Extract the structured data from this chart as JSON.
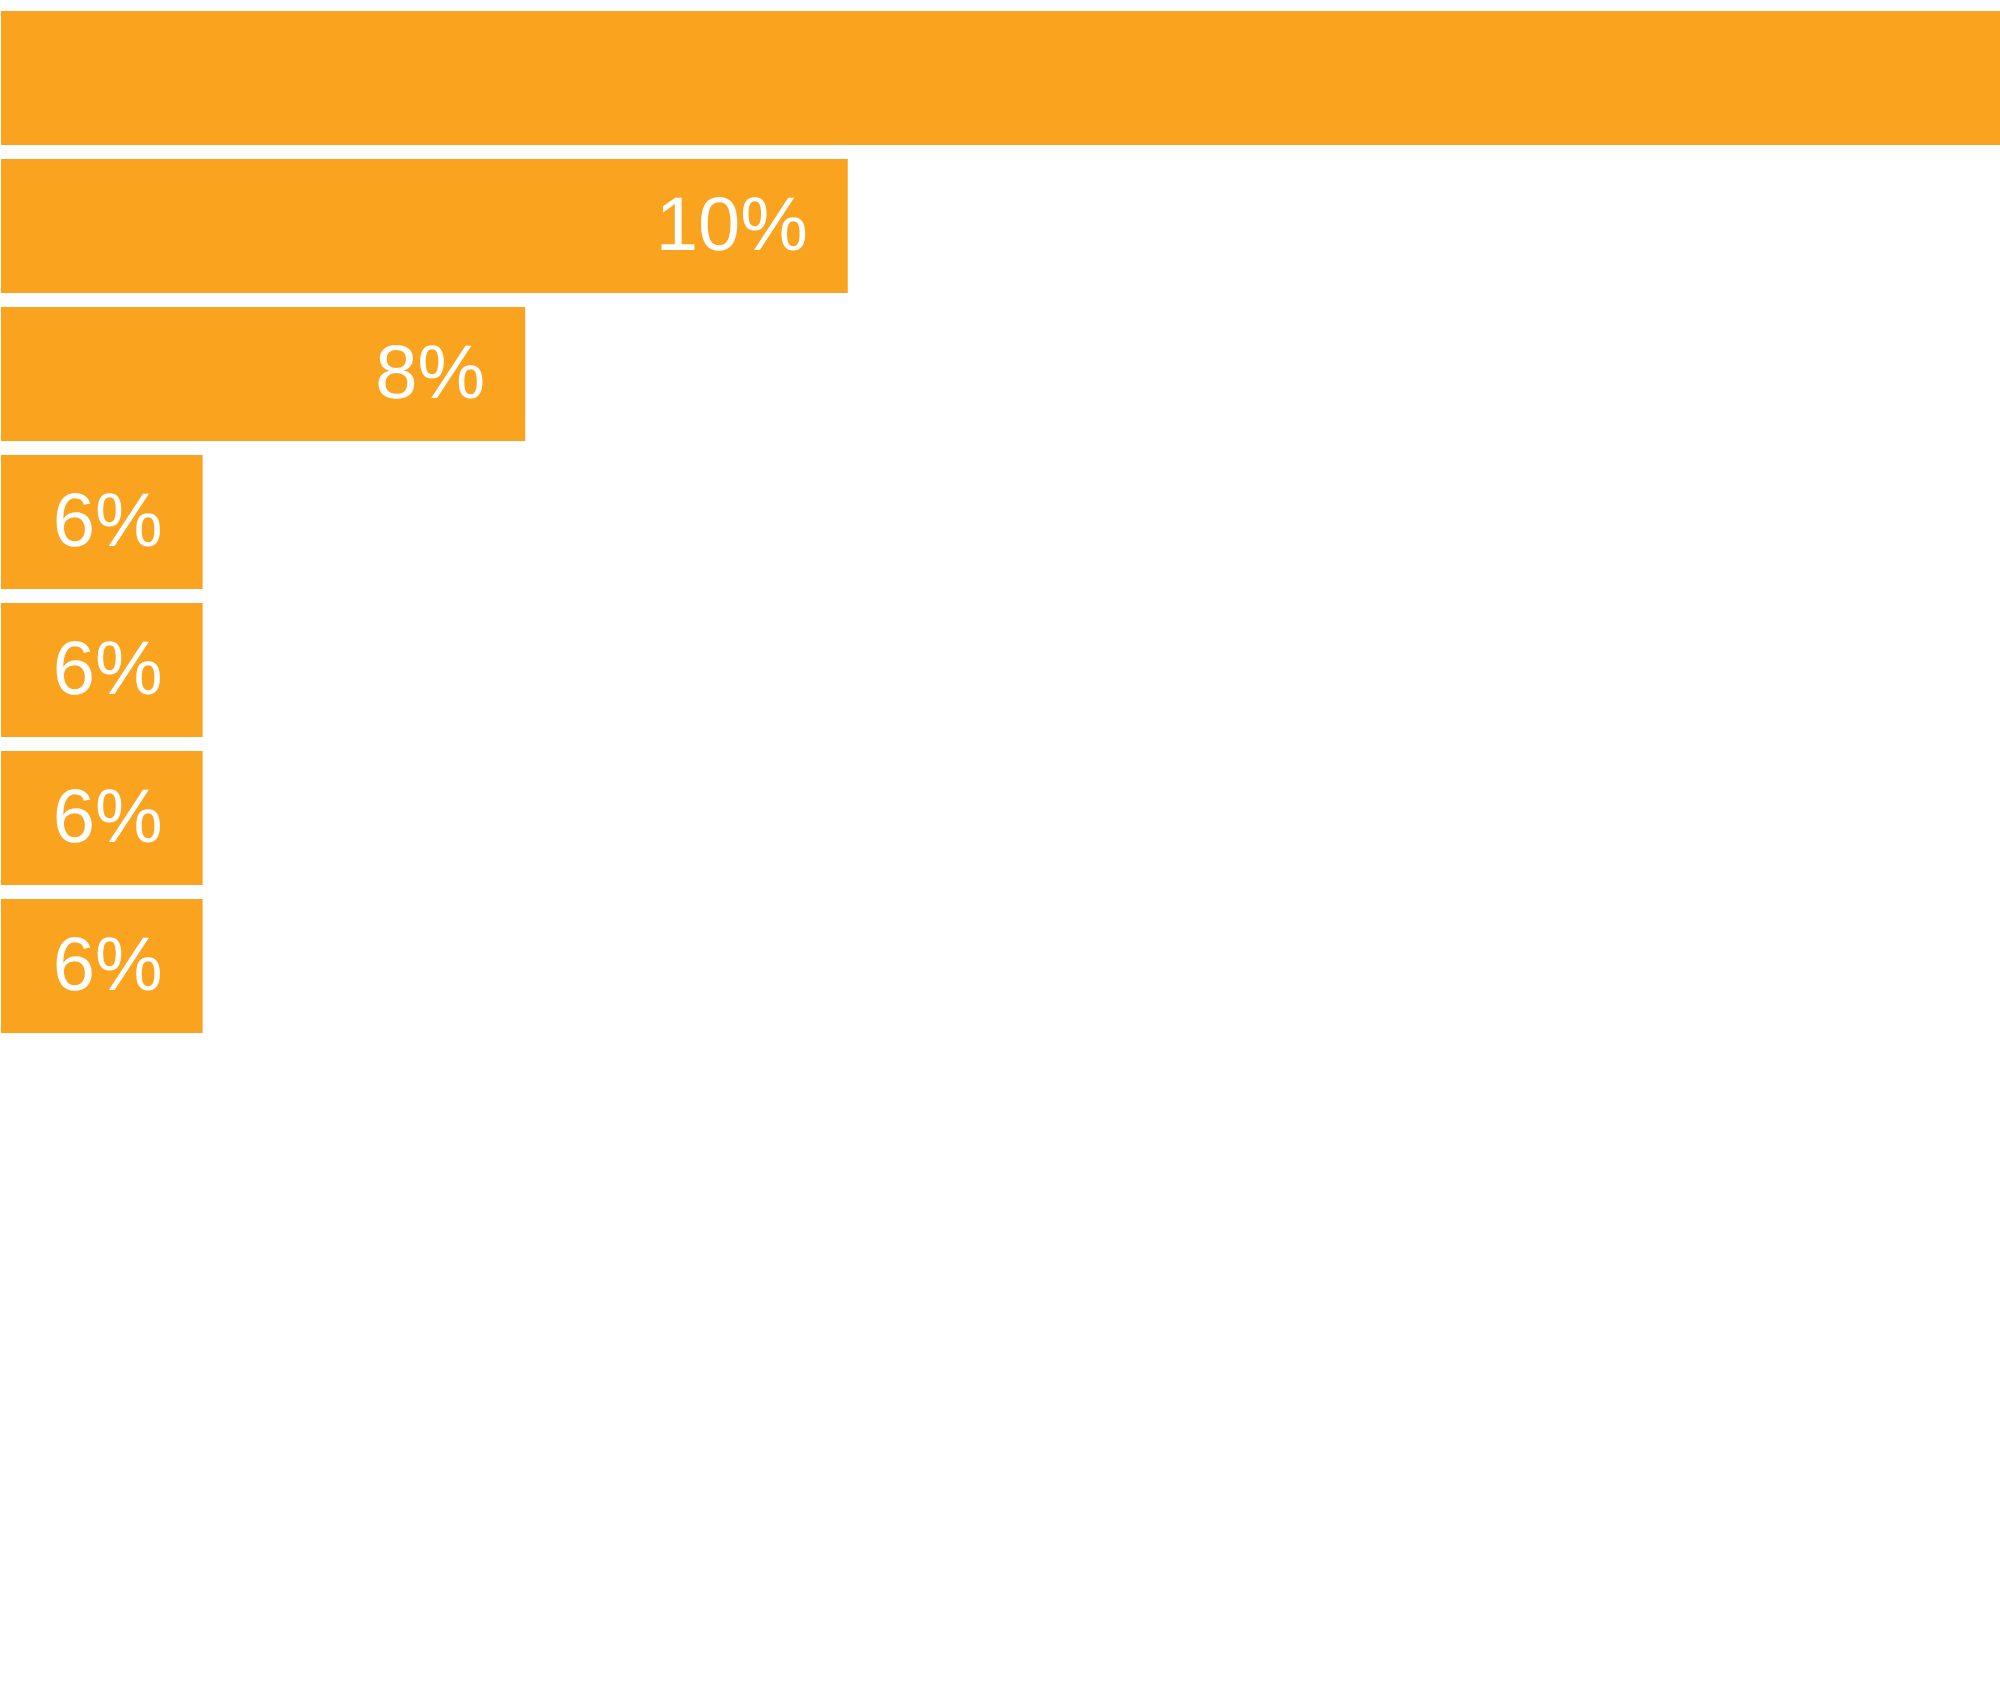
{
  "chart_data": {
    "type": "bar",
    "orientation": "horizontal",
    "categories": [
      null,
      null,
      null,
      null,
      null,
      null,
      null
    ],
    "values": [
      17.15,
      10,
      8,
      6,
      6,
      6,
      6
    ],
    "value_labels": [
      null,
      "10%",
      "8%",
      "6%",
      "6%",
      "6%",
      "6%"
    ],
    "color": "#f9a31f",
    "xlim": [
      4.75,
      17.15
    ],
    "tick_labels": false
  }
}
